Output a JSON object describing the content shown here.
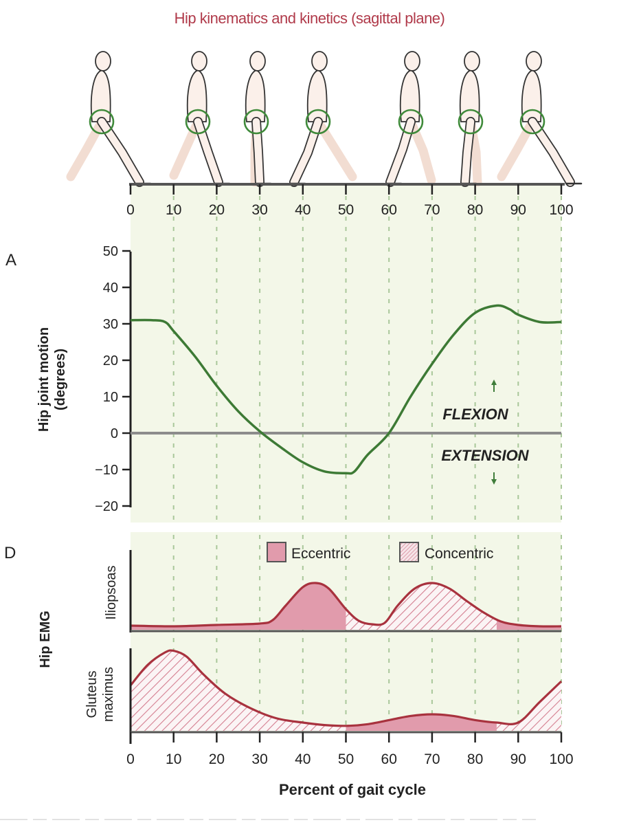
{
  "title": "Hip kinematics and kinetics (sagittal plane)",
  "panel_a_label": "A",
  "panel_d_label": "D",
  "hip_ylabel_line1": "Hip joint motion",
  "hip_ylabel_line2": "(degrees)",
  "flexion_label": "FLEXION",
  "extension_label": "EXTENSION",
  "emg_label": "Hip EMG",
  "iliopsoas_label": "Iliopsoas",
  "gluteus_label_line1": "Gluteus",
  "gluteus_label_line2": "maximus",
  "legend": {
    "eccentric": "Eccentric",
    "concentric": "Concentric"
  },
  "xlabel": "Percent of gait cycle",
  "colors": {
    "background_band": "#f3f7e8",
    "grid": "#a9c79a",
    "hip_curve": "#3d7a35",
    "emg_line": "#a8323e",
    "emg_fill": "#e19bac",
    "figure_outline": "#333333",
    "hip_circle": "#3f8a3a",
    "title": "#b03a4a"
  },
  "chart_data": [
    {
      "type": "line",
      "title": "Hip joint motion (sagittal plane)",
      "xlabel": "Percent of gait cycle",
      "ylabel": "Hip joint motion (degrees)",
      "xlim": [
        0,
        100
      ],
      "ylim": [
        -20,
        50
      ],
      "xticks": [
        0,
        10,
        20,
        30,
        40,
        50,
        60,
        70,
        80,
        90,
        100
      ],
      "yticks": [
        50,
        40,
        30,
        20,
        10,
        0,
        -10,
        -20
      ],
      "grid": "vertical dashed every 10%",
      "annotations": [
        "FLEXION (up arrow)",
        "EXTENSION (down arrow)"
      ],
      "series": [
        {
          "name": "Hip angle",
          "x": [
            0,
            5,
            8,
            10,
            15,
            20,
            25,
            30,
            35,
            40,
            45,
            50,
            52,
            55,
            60,
            65,
            70,
            75,
            80,
            85,
            88,
            90,
            95,
            100
          ],
          "y": [
            31,
            31,
            30.5,
            28,
            21,
            13,
            6,
            0.5,
            -4,
            -8,
            -10.5,
            -11,
            -10.5,
            -6,
            0,
            10,
            19,
            27,
            33,
            35,
            34,
            32.5,
            30.5,
            30.5
          ]
        }
      ]
    },
    {
      "type": "area",
      "title": "Hip EMG - Iliopsoas",
      "xlim": [
        0,
        100
      ],
      "ylim": [
        0,
        1
      ],
      "legend": [
        "Eccentric",
        "Concentric"
      ],
      "segments": [
        {
          "from": 0,
          "to": 50,
          "type": "Eccentric"
        },
        {
          "from": 50,
          "to": 85,
          "type": "Concentric"
        },
        {
          "from": 85,
          "to": 100,
          "type": "Eccentric"
        }
      ],
      "series": [
        {
          "name": "Iliopsoas",
          "x": [
            0,
            10,
            20,
            30,
            33,
            36,
            40,
            43,
            46,
            50,
            53,
            56,
            59,
            62,
            66,
            70,
            74,
            78,
            82,
            86,
            90,
            95,
            100
          ],
          "y": [
            0.06,
            0.05,
            0.07,
            0.09,
            0.14,
            0.35,
            0.62,
            0.68,
            0.6,
            0.3,
            0.13,
            0.08,
            0.1,
            0.35,
            0.6,
            0.68,
            0.6,
            0.42,
            0.25,
            0.12,
            0.07,
            0.05,
            0.05
          ]
        }
      ]
    },
    {
      "type": "area",
      "title": "Hip EMG - Gluteus maximus",
      "xlim": [
        0,
        100
      ],
      "ylim": [
        0,
        1
      ],
      "legend": [
        "Eccentric",
        "Concentric"
      ],
      "segments": [
        {
          "from": 0,
          "to": 50,
          "type": "Concentric"
        },
        {
          "from": 50,
          "to": 85,
          "type": "Eccentric"
        },
        {
          "from": 85,
          "to": 100,
          "type": "Concentric"
        }
      ],
      "series": [
        {
          "name": "Gluteus maximus",
          "x": [
            0,
            4,
            8,
            10,
            13,
            17,
            22,
            28,
            34,
            40,
            45,
            50,
            55,
            60,
            65,
            70,
            75,
            80,
            85,
            90,
            95,
            100
          ],
          "y": [
            0.55,
            0.8,
            0.95,
            0.97,
            0.9,
            0.68,
            0.45,
            0.27,
            0.15,
            0.1,
            0.07,
            0.06,
            0.08,
            0.13,
            0.18,
            0.2,
            0.18,
            0.13,
            0.1,
            0.1,
            0.35,
            0.6
          ]
        }
      ]
    }
  ]
}
